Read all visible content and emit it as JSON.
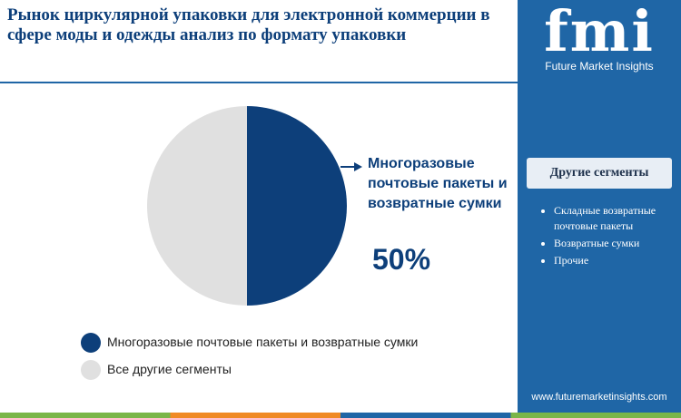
{
  "chart_data": {
    "type": "pie",
    "title": "Рынок циркулярной упаковки для электронной коммерции в сфере моды и одежды анализ по формату упаковки",
    "categories": [
      "Многоразовые почтовые пакеты и возвратные сумки",
      "Все другие сегменты"
    ],
    "values": [
      50,
      50
    ],
    "value_labels": [
      "50%",
      null
    ],
    "colors": [
      "#0d3f7a",
      "#e0e0e0"
    ]
  },
  "sidebar": {
    "logo": "fmi",
    "brand": "Future Market Insights",
    "heading": "Другие сегменты",
    "items": [
      "Складные возвратные почтовые пакеты",
      "Возвратные сумки",
      "Прочие"
    ],
    "url": "www.futuremarketinsights.com"
  }
}
